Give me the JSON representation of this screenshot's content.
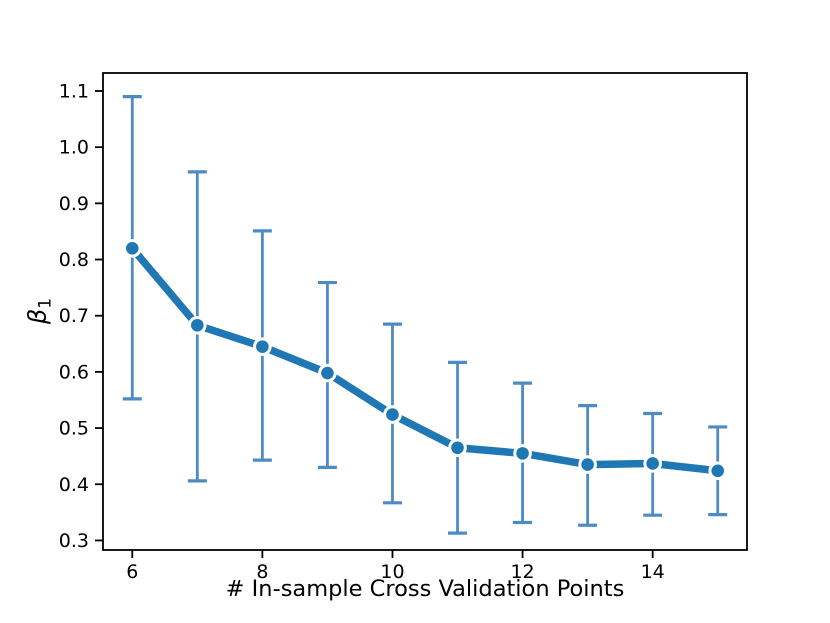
{
  "figure": {
    "background": "#ffffff"
  },
  "chart_data": {
    "type": "line",
    "title": "",
    "xlabel": "# In-sample Cross Validation Points",
    "ylabel_main": "β",
    "ylabel_sub": "1",
    "x": [
      6,
      7,
      8,
      9,
      10,
      11,
      12,
      13,
      14,
      15
    ],
    "y": [
      0.82,
      0.683,
      0.645,
      0.598,
      0.524,
      0.465,
      0.455,
      0.435,
      0.437,
      0.424
    ],
    "err_upper": [
      1.09,
      0.956,
      0.851,
      0.759,
      0.685,
      0.617,
      0.58,
      0.54,
      0.526,
      0.502
    ],
    "err_lower": [
      0.552,
      0.406,
      0.443,
      0.43,
      0.367,
      0.313,
      0.332,
      0.327,
      0.345,
      0.346
    ],
    "x_ticks": [
      6,
      8,
      10,
      12,
      14
    ],
    "x_tick_labels": [
      "6",
      "8",
      "10",
      "12",
      "14"
    ],
    "y_ticks": [
      0.3,
      0.4,
      0.5,
      0.6,
      0.7,
      0.8,
      0.9,
      1.0,
      1.1
    ],
    "y_tick_labels": [
      "0.3",
      "0.4",
      "0.5",
      "0.6",
      "0.7",
      "0.8",
      "0.9",
      "1.0",
      "1.1"
    ],
    "xlim": [
      5.55,
      15.45
    ],
    "ylim": [
      0.283,
      1.132
    ],
    "grid": false,
    "legend_position": "none",
    "colors": {
      "line": "#1f77b4",
      "error": "#4e8bc4",
      "marker_fill": "#1f77b4",
      "marker_edge": "#ffffff",
      "axis": "#000000",
      "text": "#000000"
    }
  }
}
